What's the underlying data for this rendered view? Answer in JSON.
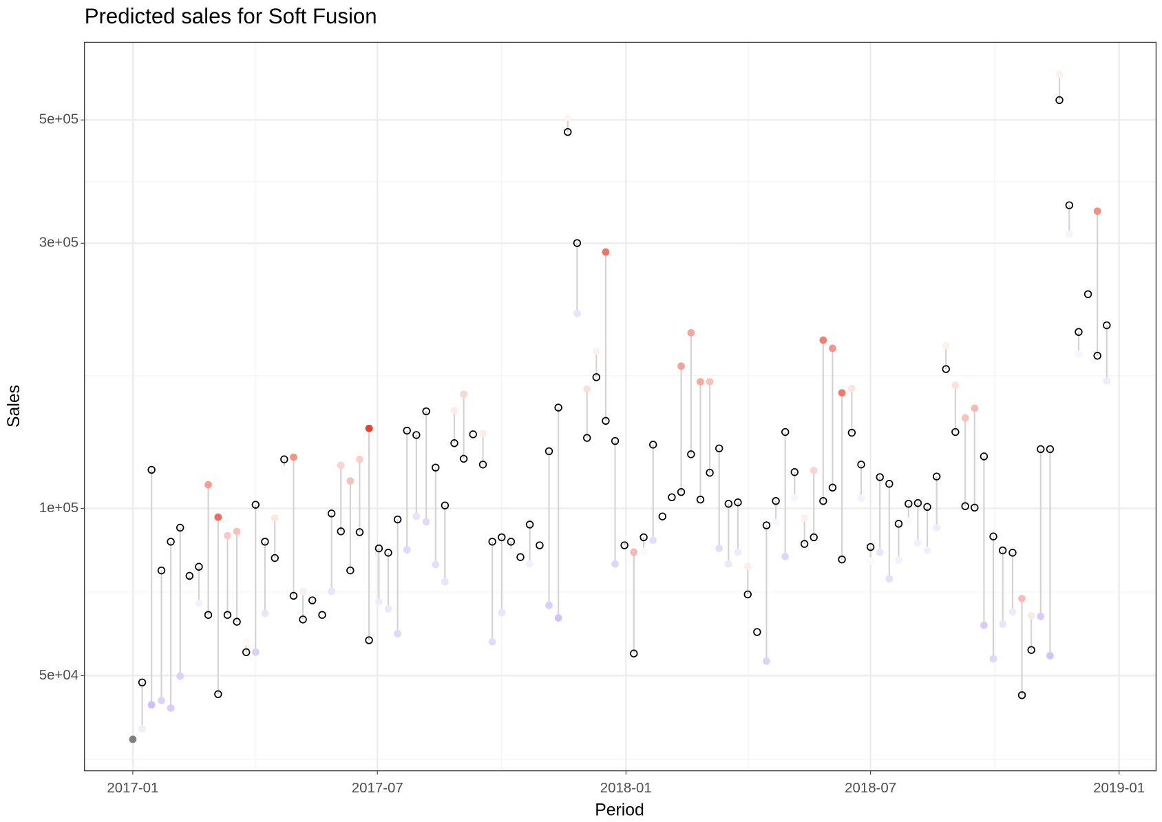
{
  "chart_data": {
    "type": "dumbbell",
    "title": "Predicted sales for Soft Fusion",
    "x_label": "Period",
    "y_label": "Sales",
    "y_log": true,
    "grid": true,
    "segment_color": "#d3d3d3",
    "actual_color": "#000000",
    "color_low": "#8f6ff0",
    "color_mid": "#ffffff",
    "color_high": "#e8412c",
    "na_color": "#808080",
    "xlim": [
      2016.902,
      2019.075
    ],
    "xticks": [
      {
        "value": 2017.0,
        "label": "2017-01"
      },
      {
        "value": 2017.496,
        "label": "2017-07"
      },
      {
        "value": 2018.0,
        "label": "2018-01"
      },
      {
        "value": 2018.496,
        "label": "2018-07"
      },
      {
        "value": 2019.0,
        "label": "2019-01"
      }
    ],
    "ylim": [
      33700,
      689800
    ],
    "yticks": [
      {
        "value": 50000,
        "label": "5e+04"
      },
      {
        "value": 100000,
        "label": "1e+05"
      },
      {
        "value": 300000,
        "label": "3e+05"
      },
      {
        "value": 500000,
        "label": "5e+05"
      }
    ],
    "x": [
      2017.0,
      2017.019,
      2017.038,
      2017.058,
      2017.077,
      2017.096,
      2017.115,
      2017.134,
      2017.153,
      2017.173,
      2017.192,
      2017.211,
      2017.23,
      2017.249,
      2017.268,
      2017.288,
      2017.307,
      2017.326,
      2017.345,
      2017.364,
      2017.384,
      2017.403,
      2017.422,
      2017.441,
      2017.46,
      2017.479,
      2017.499,
      2017.518,
      2017.537,
      2017.556,
      2017.575,
      2017.595,
      2017.614,
      2017.633,
      2017.652,
      2017.671,
      2017.69,
      2017.71,
      2017.729,
      2017.748,
      2017.767,
      2017.786,
      2017.805,
      2017.825,
      2017.844,
      2017.863,
      2017.882,
      2017.901,
      2017.921,
      2017.94,
      2017.959,
      2017.978,
      2017.997,
      2018.016,
      2018.036,
      2018.055,
      2018.074,
      2018.093,
      2018.112,
      2018.132,
      2018.151,
      2018.17,
      2018.189,
      2018.208,
      2018.227,
      2018.247,
      2018.266,
      2018.285,
      2018.304,
      2018.323,
      2018.342,
      2018.362,
      2018.381,
      2018.4,
      2018.419,
      2018.438,
      2018.458,
      2018.477,
      2018.496,
      2018.515,
      2018.534,
      2018.553,
      2018.573,
      2018.592,
      2018.611,
      2018.63,
      2018.649,
      2018.668,
      2018.688,
      2018.707,
      2018.726,
      2018.745,
      2018.764,
      2018.784,
      2018.803,
      2018.822,
      2018.841,
      2018.86,
      2018.879,
      2018.899,
      2018.918,
      2018.937,
      2018.956,
      2018.975
    ],
    "actual": [
      null,
      48600,
      117300,
      77300,
      87100,
      92300,
      75600,
      78500,
      64300,
      46300,
      64300,
      62500,
      55100,
      101500,
      87100,
      81400,
      122500,
      69600,
      63100,
      68300,
      64300,
      97900,
      90900,
      77300,
      90600,
      57900,
      84700,
      83200,
      95500,
      138000,
      135500,
      149500,
      118400,
      101200,
      131000,
      122800,
      135900,
      119900,
      87100,
      88700,
      87100,
      81700,
      93500,
      85800,
      126700,
      151800,
      475700,
      300200,
      133900,
      172200,
      143700,
      132200,
      85800,
      54800,
      88700,
      130200,
      96700,
      104700,
      107000,
      125100,
      103700,
      115900,
      128200,
      101900,
      102500,
      70000,
      59900,
      93200,
      103100,
      137200,
      116200,
      86300,
      88700,
      103100,
      109000,
      80900,
      136800,
      119900,
      85200,
      113800,
      110700,
      93800,
      101900,
      102200,
      100600,
      114100,
      178100,
      137200,
      100900,
      100300,
      124000,
      89000,
      84000,
      83200,
      46100,
      55600,
      127800,
      127800,
      542800,
      351100,
      207700,
      242900,
      188200,
      213500
    ],
    "predicted": [
      38400,
      40100,
      44300,
      45100,
      43700,
      49900,
      73100,
      67500,
      110300,
      96400,
      89300,
      90900,
      57500,
      55100,
      64700,
      96100,
      117300,
      123600,
      70900,
      66300,
      64300,
      70900,
      119500,
      112000,
      122500,
      139300,
      67900,
      65900,
      59500,
      84200,
      96700,
      94600,
      79200,
      73800,
      150000,
      160400,
      135900,
      136400,
      57500,
      64900,
      83400,
      81700,
      79400,
      85800,
      66900,
      63500,
      505800,
      224300,
      163900,
      191700,
      289300,
      79400,
      87900,
      83400,
      83700,
      87600,
      96700,
      104700,
      180300,
      207000,
      169000,
      169000,
      84700,
      79400,
      83400,
      78700,
      59900,
      53100,
      94300,
      81900,
      104400,
      96100,
      117000,
      200800,
      194100,
      161400,
      164400,
      104100,
      80400,
      83400,
      74700,
      80700,
      94900,
      86600,
      84000,
      92300,
      196500,
      166500,
      145400,
      151400,
      61600,
      53600,
      61900,
      65100,
      68800,
      64100,
      63900,
      54300,
      604300,
      311400,
      189400,
      246600,
      342600,
      169600
    ]
  }
}
